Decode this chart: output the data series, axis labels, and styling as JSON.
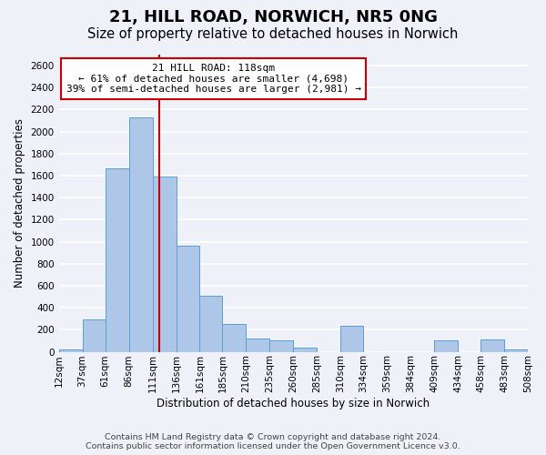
{
  "title": "21, HILL ROAD, NORWICH, NR5 0NG",
  "subtitle": "Size of property relative to detached houses in Norwich",
  "xlabel": "Distribution of detached houses by size in Norwich",
  "ylabel": "Number of detached properties",
  "bar_edges": [
    12,
    37,
    61,
    86,
    111,
    136,
    161,
    185,
    210,
    235,
    260,
    285,
    310,
    334,
    359,
    384,
    409,
    434,
    458,
    483,
    508
  ],
  "bar_heights": [
    20,
    295,
    1670,
    2130,
    1595,
    960,
    505,
    250,
    120,
    100,
    35,
    0,
    235,
    0,
    0,
    0,
    100,
    0,
    110,
    20
  ],
  "bar_color": "#aec6e8",
  "bar_edge_color": "#5a9fd4",
  "property_value": 118,
  "vline_color": "#cc0000",
  "annotation_title": "21 HILL ROAD: 118sqm",
  "annotation_line1": "← 61% of detached houses are smaller (4,698)",
  "annotation_line2": "39% of semi-detached houses are larger (2,981) →",
  "annotation_box_color": "#ffffff",
  "annotation_box_edge": "#cc0000",
  "ylim": [
    0,
    2700
  ],
  "yticks": [
    0,
    200,
    400,
    600,
    800,
    1000,
    1200,
    1400,
    1600,
    1800,
    2000,
    2200,
    2400,
    2600
  ],
  "xtick_labels": [
    "12sqm",
    "37sqm",
    "61sqm",
    "86sqm",
    "111sqm",
    "136sqm",
    "161sqm",
    "185sqm",
    "210sqm",
    "235sqm",
    "260sqm",
    "285sqm",
    "310sqm",
    "334sqm",
    "359sqm",
    "384sqm",
    "409sqm",
    "434sqm",
    "458sqm",
    "483sqm",
    "508sqm"
  ],
  "footer_line1": "Contains HM Land Registry data © Crown copyright and database right 2024.",
  "footer_line2": "Contains public sector information licensed under the Open Government Licence v3.0.",
  "bg_color": "#eef2f8",
  "plot_bg_color": "#eef2f8",
  "grid_color": "#ffffff",
  "title_fontsize": 13,
  "subtitle_fontsize": 10.5,
  "axis_label_fontsize": 8.5,
  "tick_fontsize": 7.5,
  "footer_fontsize": 6.8
}
